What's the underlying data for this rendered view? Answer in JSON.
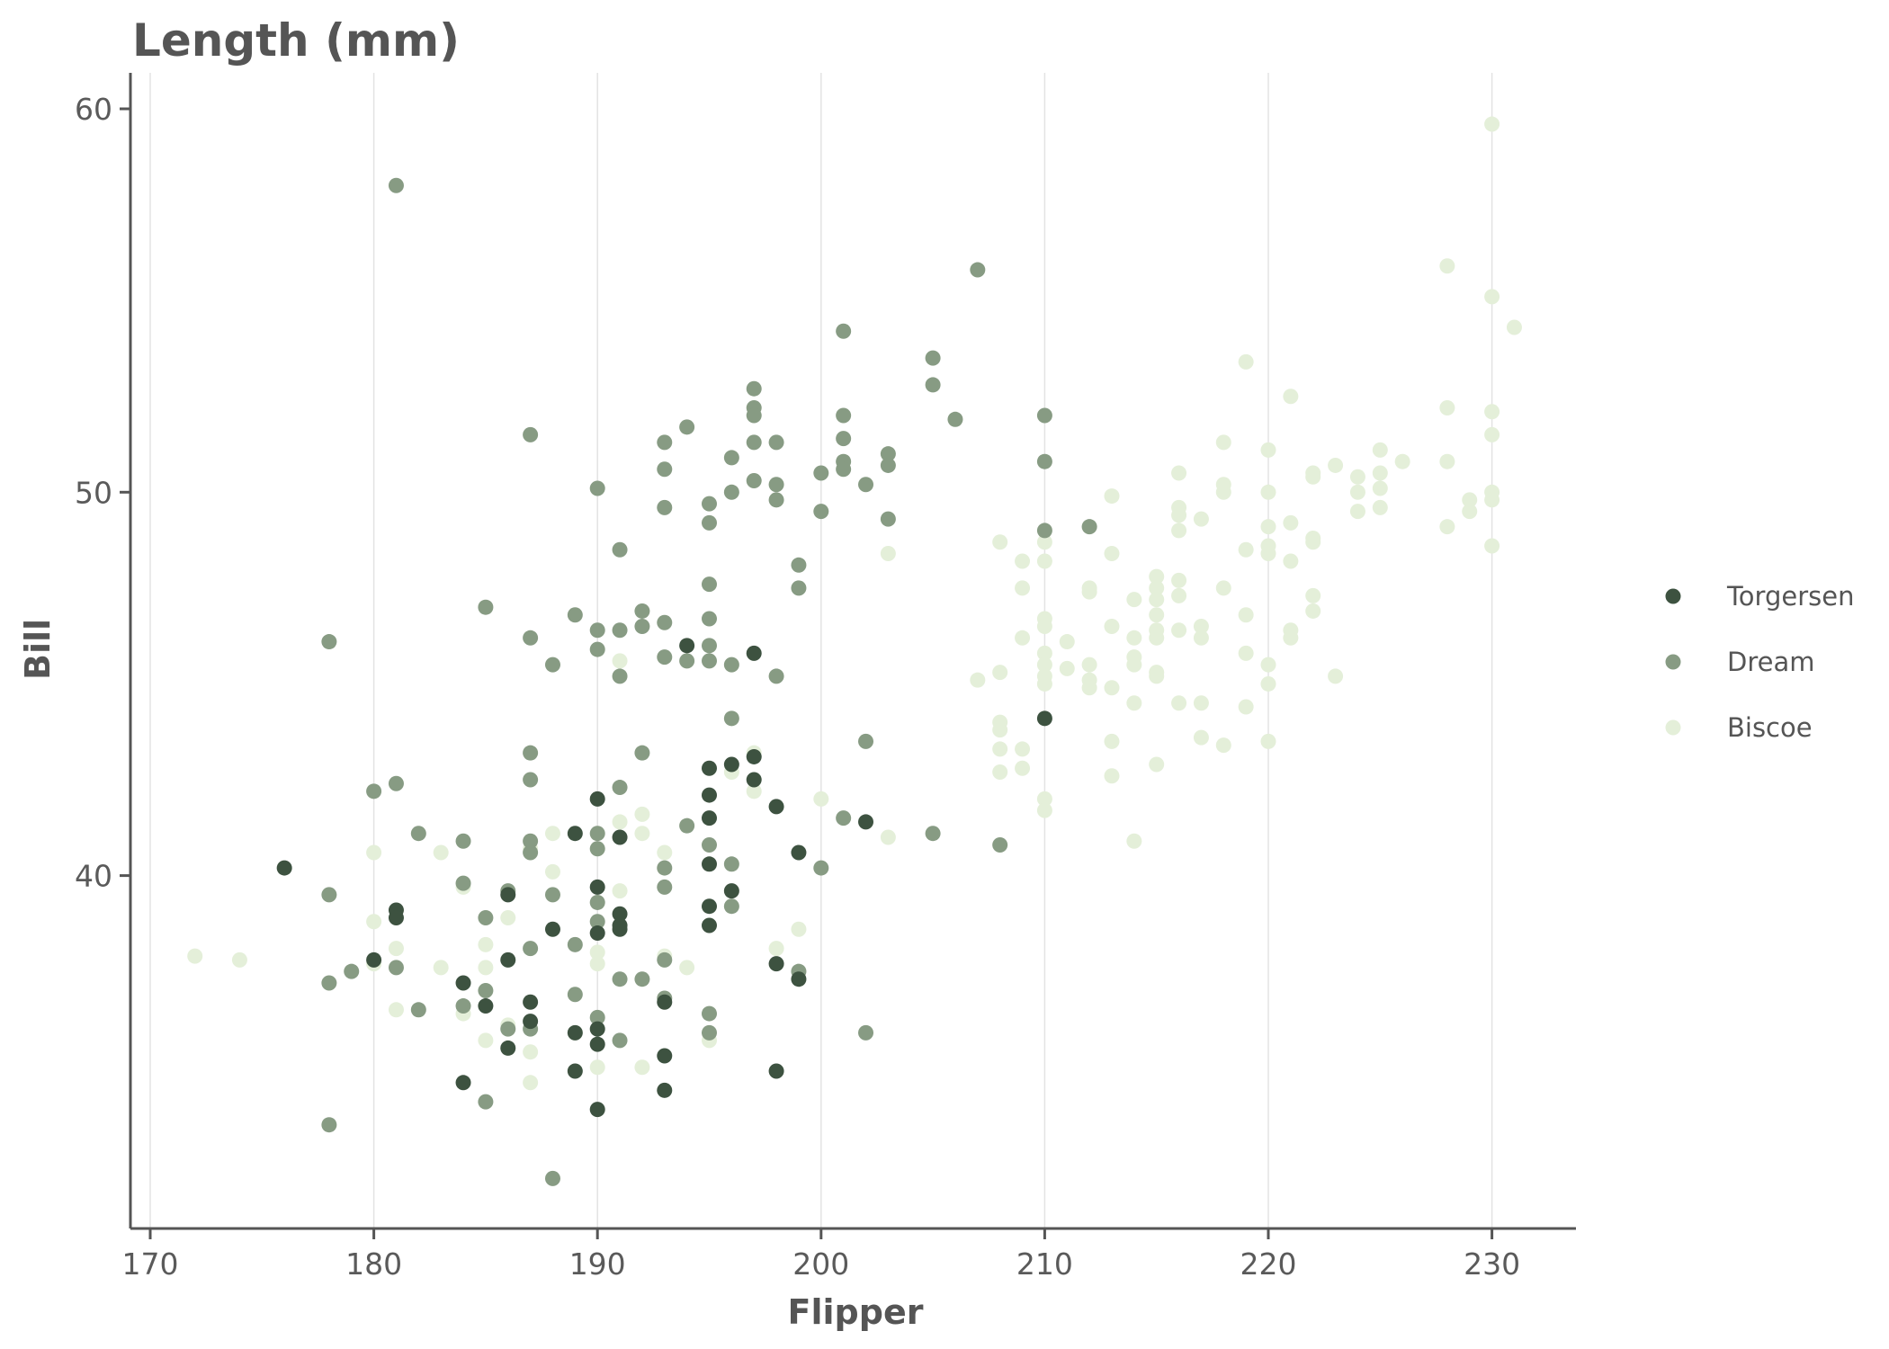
{
  "chart_data": {
    "type": "scatter",
    "title": "Length (mm)",
    "xlabel": "Flipper",
    "ylabel": "Bill",
    "xlim": [
      169,
      234
    ],
    "ylim": [
      31,
      61
    ],
    "xticks": [
      170,
      180,
      190,
      200,
      210,
      220,
      230
    ],
    "yticks": [
      40,
      50,
      60
    ],
    "grid": "vertical major lines only",
    "legend_position": "right",
    "series": [
      {
        "name": "Torgersen",
        "color": "#3d5240",
        "points": [
          [
            176,
            40.2
          ],
          [
            180,
            37.8
          ],
          [
            181,
            39.1
          ],
          [
            181,
            38.9
          ],
          [
            184,
            37.2
          ],
          [
            184,
            34.6
          ],
          [
            185,
            36.6
          ],
          [
            186,
            39.5
          ],
          [
            186,
            37.8
          ],
          [
            186,
            35.5
          ],
          [
            187,
            36.7
          ],
          [
            187,
            36.2
          ],
          [
            188,
            38.6
          ],
          [
            189,
            41.1
          ],
          [
            189,
            35.9
          ],
          [
            189,
            34.9
          ],
          [
            190,
            42.0
          ],
          [
            190,
            39.7
          ],
          [
            190,
            38.5
          ],
          [
            190,
            36.0
          ],
          [
            190,
            35.6
          ],
          [
            190,
            33.9
          ],
          [
            191,
            41.0
          ],
          [
            191,
            39.0
          ],
          [
            191,
            38.7
          ],
          [
            191,
            38.6
          ],
          [
            193,
            36.7
          ],
          [
            193,
            35.3
          ],
          [
            193,
            34.4
          ],
          [
            194,
            46.0
          ],
          [
            195,
            42.8
          ],
          [
            195,
            42.1
          ],
          [
            195,
            41.5
          ],
          [
            195,
            40.3
          ],
          [
            195,
            39.2
          ],
          [
            195,
            38.7
          ],
          [
            196,
            42.9
          ],
          [
            196,
            39.6
          ],
          [
            197,
            45.8
          ],
          [
            197,
            43.1
          ],
          [
            197,
            42.5
          ],
          [
            198,
            41.8
          ],
          [
            198,
            37.7
          ],
          [
            198,
            34.9
          ],
          [
            199,
            40.6
          ],
          [
            199,
            37.3
          ],
          [
            202,
            41.4
          ],
          [
            210,
            44.1
          ]
        ]
      },
      {
        "name": "Dream",
        "color": "#879b83",
        "points": [
          [
            178,
            46.1
          ],
          [
            178,
            39.5
          ],
          [
            178,
            37.2
          ],
          [
            178,
            33.5
          ],
          [
            179,
            37.5
          ],
          [
            180,
            42.2
          ],
          [
            181,
            58.0
          ],
          [
            181,
            42.4
          ],
          [
            181,
            37.6
          ],
          [
            182,
            41.1
          ],
          [
            182,
            36.5
          ],
          [
            184,
            40.9
          ],
          [
            184,
            39.8
          ],
          [
            184,
            36.6
          ],
          [
            185,
            47.0
          ],
          [
            185,
            38.9
          ],
          [
            185,
            37.0
          ],
          [
            185,
            34.1
          ],
          [
            186,
            39.6
          ],
          [
            186,
            36.0
          ],
          [
            187,
            51.5
          ],
          [
            187,
            46.2
          ],
          [
            187,
            43.2
          ],
          [
            187,
            42.5
          ],
          [
            187,
            40.9
          ],
          [
            187,
            40.6
          ],
          [
            187,
            38.1
          ],
          [
            187,
            36.0
          ],
          [
            188,
            45.5
          ],
          [
            188,
            39.5
          ],
          [
            188,
            32.1
          ],
          [
            189,
            46.8
          ],
          [
            189,
            38.2
          ],
          [
            189,
            36.9
          ],
          [
            190,
            50.1
          ],
          [
            190,
            46.4
          ],
          [
            190,
            45.9
          ],
          [
            190,
            41.1
          ],
          [
            190,
            40.7
          ],
          [
            190,
            39.3
          ],
          [
            190,
            38.8
          ],
          [
            190,
            36.3
          ],
          [
            191,
            48.5
          ],
          [
            191,
            46.4
          ],
          [
            191,
            45.2
          ],
          [
            191,
            42.3
          ],
          [
            191,
            37.3
          ],
          [
            191,
            35.7
          ],
          [
            192,
            46.9
          ],
          [
            192,
            46.5
          ],
          [
            192,
            43.2
          ],
          [
            192,
            37.3
          ],
          [
            193,
            51.3
          ],
          [
            193,
            50.6
          ],
          [
            193,
            49.6
          ],
          [
            193,
            46.6
          ],
          [
            193,
            45.7
          ],
          [
            193,
            40.2
          ],
          [
            193,
            39.7
          ],
          [
            193,
            37.8
          ],
          [
            193,
            36.8
          ],
          [
            194,
            51.7
          ],
          [
            194,
            45.6
          ],
          [
            194,
            41.3
          ],
          [
            195,
            49.7
          ],
          [
            195,
            49.2
          ],
          [
            195,
            47.6
          ],
          [
            195,
            46.7
          ],
          [
            195,
            46.0
          ],
          [
            195,
            45.6
          ],
          [
            195,
            40.8
          ],
          [
            195,
            36.4
          ],
          [
            195,
            35.9
          ],
          [
            196,
            50.9
          ],
          [
            196,
            50.0
          ],
          [
            196,
            45.5
          ],
          [
            196,
            44.1
          ],
          [
            196,
            40.3
          ],
          [
            196,
            39.2
          ],
          [
            197,
            52.7
          ],
          [
            197,
            52.2
          ],
          [
            197,
            52.0
          ],
          [
            197,
            51.3
          ],
          [
            197,
            50.3
          ],
          [
            198,
            51.3
          ],
          [
            198,
            50.2
          ],
          [
            198,
            49.8
          ],
          [
            198,
            45.2
          ],
          [
            199,
            48.1
          ],
          [
            199,
            47.5
          ],
          [
            199,
            37.5
          ],
          [
            200,
            50.5
          ],
          [
            200,
            49.5
          ],
          [
            200,
            40.2
          ],
          [
            201,
            54.2
          ],
          [
            201,
            52.0
          ],
          [
            201,
            51.4
          ],
          [
            201,
            50.8
          ],
          [
            201,
            50.6
          ],
          [
            201,
            41.5
          ],
          [
            202,
            50.2
          ],
          [
            202,
            43.5
          ],
          [
            202,
            35.9
          ],
          [
            203,
            51.0
          ],
          [
            203,
            50.7
          ],
          [
            203,
            49.3
          ],
          [
            205,
            53.5
          ],
          [
            205,
            52.8
          ],
          [
            205,
            41.1
          ],
          [
            206,
            51.9
          ],
          [
            207,
            55.8
          ],
          [
            208,
            40.8
          ],
          [
            210,
            52.0
          ],
          [
            210,
            50.8
          ],
          [
            210,
            49.0
          ],
          [
            212,
            49.1
          ]
        ]
      },
      {
        "name": "Biscoe",
        "color": "#e4efd9",
        "points": [
          [
            172,
            37.9
          ],
          [
            174,
            37.8
          ],
          [
            180,
            40.6
          ],
          [
            180,
            38.8
          ],
          [
            180,
            37.7
          ],
          [
            181,
            38.1
          ],
          [
            181,
            36.5
          ],
          [
            183,
            40.6
          ],
          [
            183,
            37.6
          ],
          [
            184,
            39.7
          ],
          [
            184,
            36.4
          ],
          [
            185,
            38.2
          ],
          [
            185,
            37.6
          ],
          [
            185,
            35.7
          ],
          [
            186,
            38.9
          ],
          [
            186,
            36.1
          ],
          [
            187,
            40.7
          ],
          [
            187,
            35.4
          ],
          [
            187,
            34.6
          ],
          [
            188,
            41.1
          ],
          [
            188,
            40.1
          ],
          [
            189,
            35.9
          ],
          [
            190,
            38.0
          ],
          [
            190,
            37.7
          ],
          [
            190,
            35.0
          ],
          [
            191,
            45.6
          ],
          [
            191,
            41.4
          ],
          [
            191,
            39.6
          ],
          [
            192,
            41.6
          ],
          [
            192,
            41.1
          ],
          [
            192,
            35.0
          ],
          [
            193,
            40.6
          ],
          [
            193,
            37.9
          ],
          [
            194,
            37.6
          ],
          [
            195,
            35.7
          ],
          [
            196,
            42.7
          ],
          [
            197,
            43.2
          ],
          [
            197,
            42.2
          ],
          [
            198,
            38.1
          ],
          [
            199,
            38.6
          ],
          [
            200,
            42.0
          ],
          [
            203,
            48.4
          ],
          [
            203,
            41.0
          ],
          [
            207,
            45.1
          ],
          [
            208,
            48.7
          ],
          [
            208,
            45.3
          ],
          [
            208,
            44.0
          ],
          [
            208,
            43.8
          ],
          [
            208,
            43.3
          ],
          [
            208,
            42.7
          ],
          [
            209,
            48.2
          ],
          [
            209,
            47.5
          ],
          [
            209,
            46.2
          ],
          [
            209,
            43.3
          ],
          [
            209,
            42.8
          ],
          [
            210,
            48.7
          ],
          [
            210,
            48.2
          ],
          [
            210,
            46.7
          ],
          [
            210,
            46.5
          ],
          [
            210,
            45.8
          ],
          [
            210,
            45.5
          ],
          [
            210,
            45.2
          ],
          [
            210,
            45.0
          ],
          [
            210,
            42.0
          ],
          [
            210,
            41.7
          ],
          [
            211,
            46.1
          ],
          [
            211,
            45.4
          ],
          [
            212,
            49.1
          ],
          [
            212,
            47.5
          ],
          [
            212,
            47.4
          ],
          [
            212,
            45.5
          ],
          [
            212,
            45.1
          ],
          [
            212,
            44.9
          ],
          [
            213,
            49.9
          ],
          [
            213,
            48.4
          ],
          [
            213,
            46.5
          ],
          [
            213,
            44.9
          ],
          [
            213,
            43.5
          ],
          [
            213,
            42.6
          ],
          [
            214,
            47.2
          ],
          [
            214,
            46.2
          ],
          [
            214,
            45.7
          ],
          [
            214,
            45.5
          ],
          [
            214,
            44.5
          ],
          [
            214,
            40.9
          ],
          [
            215,
            47.8
          ],
          [
            215,
            47.5
          ],
          [
            215,
            47.2
          ],
          [
            215,
            46.8
          ],
          [
            215,
            46.4
          ],
          [
            215,
            46.2
          ],
          [
            215,
            45.3
          ],
          [
            215,
            45.2
          ],
          [
            215,
            42.9
          ],
          [
            216,
            50.5
          ],
          [
            216,
            49.6
          ],
          [
            216,
            49.4
          ],
          [
            216,
            49.0
          ],
          [
            216,
            47.7
          ],
          [
            216,
            47.3
          ],
          [
            216,
            46.4
          ],
          [
            216,
            44.5
          ],
          [
            217,
            49.3
          ],
          [
            217,
            46.5
          ],
          [
            217,
            46.2
          ],
          [
            217,
            44.5
          ],
          [
            217,
            43.6
          ],
          [
            218,
            51.3
          ],
          [
            218,
            50.2
          ],
          [
            218,
            50.0
          ],
          [
            218,
            47.5
          ],
          [
            218,
            43.4
          ],
          [
            219,
            53.4
          ],
          [
            219,
            48.5
          ],
          [
            219,
            46.8
          ],
          [
            219,
            45.8
          ],
          [
            219,
            44.4
          ],
          [
            220,
            51.1
          ],
          [
            220,
            50.0
          ],
          [
            220,
            49.1
          ],
          [
            220,
            48.6
          ],
          [
            220,
            48.4
          ],
          [
            220,
            45.5
          ],
          [
            220,
            45.0
          ],
          [
            220,
            43.5
          ],
          [
            221,
            52.5
          ],
          [
            221,
            49.2
          ],
          [
            221,
            48.2
          ],
          [
            221,
            46.4
          ],
          [
            221,
            46.2
          ],
          [
            222,
            50.5
          ],
          [
            222,
            50.4
          ],
          [
            222,
            48.8
          ],
          [
            222,
            48.7
          ],
          [
            222,
            47.3
          ],
          [
            222,
            46.9
          ],
          [
            223,
            50.7
          ],
          [
            223,
            45.2
          ],
          [
            224,
            50.4
          ],
          [
            224,
            50.0
          ],
          [
            224,
            49.5
          ],
          [
            225,
            51.1
          ],
          [
            225,
            50.5
          ],
          [
            225,
            50.1
          ],
          [
            225,
            49.6
          ],
          [
            226,
            50.8
          ],
          [
            228,
            55.9
          ],
          [
            228,
            52.2
          ],
          [
            228,
            50.8
          ],
          [
            228,
            49.1
          ],
          [
            229,
            49.8
          ],
          [
            229,
            49.5
          ],
          [
            230,
            59.6
          ],
          [
            230,
            55.1
          ],
          [
            230,
            52.1
          ],
          [
            230,
            51.5
          ],
          [
            230,
            50.0
          ],
          [
            230,
            49.8
          ],
          [
            230,
            48.6
          ],
          [
            231,
            54.3
          ]
        ]
      }
    ]
  }
}
